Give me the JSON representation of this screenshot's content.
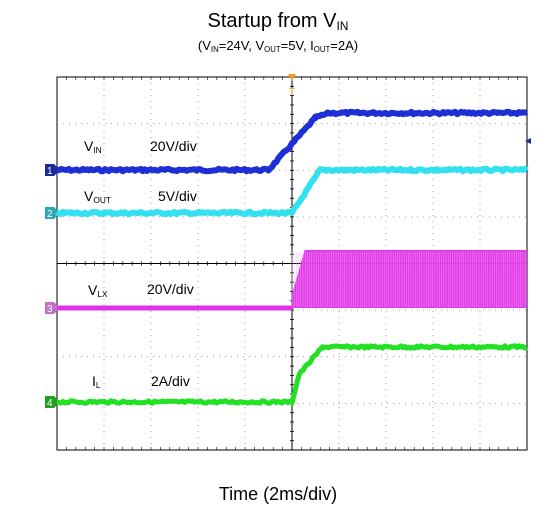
{
  "chart_data": {
    "type": "line",
    "title": {
      "main": "Startup from V",
      "sub": "IN"
    },
    "subtitle": [
      {
        "t": "(V"
      },
      {
        "t": "IN",
        "sub": true
      },
      {
        "t": "=24V, V"
      },
      {
        "t": "OUT",
        "sub": true
      },
      {
        "t": "=5V, I"
      },
      {
        "t": "OUT",
        "sub": true
      },
      {
        "t": "=2A)"
      }
    ],
    "xlabel": "Time (2ms/div)",
    "x_divisions": 10,
    "y_divisions": 8,
    "grid": true,
    "trigger_marker": "T",
    "channels": [
      {
        "id": "1",
        "name": "V",
        "sub": "IN",
        "scale": "20V/div",
        "color": "#1f2fd6",
        "marker_color": "#1a2a9a"
      },
      {
        "id": "2",
        "name": "V",
        "sub": "OUT",
        "scale": "5V/div",
        "color": "#33e0f0",
        "marker_color": "#2aa8b8"
      },
      {
        "id": "3",
        "name": "V",
        "sub": "LX",
        "scale": "20V/div",
        "color": "#e030e8",
        "marker_color": "#c070c8"
      },
      {
        "id": "4",
        "name": "I",
        "sub": "L",
        "scale": "2A/div",
        "color": "#22e022",
        "marker_color": "#20a020"
      }
    ],
    "series": [
      {
        "name": "VIN (V)",
        "x_ms": [
          -10,
          -1,
          1,
          1.6,
          10
        ],
        "values": [
          0,
          0,
          22,
          24,
          24
        ]
      },
      {
        "name": "VOUT (V)",
        "x_ms": [
          -10,
          0,
          1.2,
          10
        ],
        "values": [
          0,
          0,
          5,
          5
        ]
      },
      {
        "name": "VLX (V)",
        "x_ms": [
          -10,
          0,
          0.2,
          10
        ],
        "values": [
          0,
          0,
          24,
          24
        ],
        "switching": true
      },
      {
        "name": "IL (A)",
        "x_ms": [
          -10,
          0,
          0.3,
          1.3,
          10
        ],
        "values": [
          0,
          0,
          1,
          2,
          2
        ]
      }
    ]
  }
}
